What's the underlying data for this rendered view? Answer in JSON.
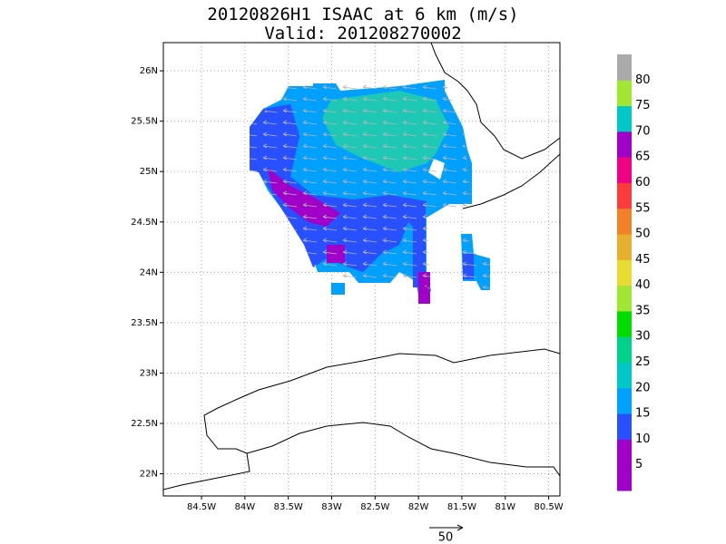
{
  "chart_data": {
    "type": "map",
    "title": "20120826H1 ISAAC at 6 km (m/s)",
    "subtitle": "Valid: 201208270002",
    "xlim": [
      -84.94,
      -80.37
    ],
    "ylim": [
      21.78,
      26.28
    ],
    "xticks": [
      {
        "value": -84.5,
        "label": "84.5W"
      },
      {
        "value": -84,
        "label": "84W"
      },
      {
        "value": -83.5,
        "label": "83.5W"
      },
      {
        "value": -83,
        "label": "83W"
      },
      {
        "value": -82.5,
        "label": "82.5W"
      },
      {
        "value": -82,
        "label": "82W"
      },
      {
        "value": -81.5,
        "label": "81.5W"
      },
      {
        "value": -81,
        "label": "81W"
      },
      {
        "value": -80.5,
        "label": "80.5W"
      }
    ],
    "yticks": [
      {
        "value": 22,
        "label": "22N"
      },
      {
        "value": 22.5,
        "label": "22.5N"
      },
      {
        "value": 23,
        "label": "23N"
      },
      {
        "value": 23.5,
        "label": "23.5N"
      },
      {
        "value": 24,
        "label": "24N"
      },
      {
        "value": 24.5,
        "label": "24.5N"
      },
      {
        "value": 25,
        "label": "25N"
      },
      {
        "value": 25.5,
        "label": "25.5N"
      },
      {
        "value": 26,
        "label": "26N"
      }
    ],
    "grid": true,
    "colorbar": {
      "levels": [
        5,
        10,
        15,
        20,
        25,
        30,
        35,
        40,
        45,
        50,
        55,
        60,
        65,
        70,
        75,
        80
      ],
      "colors": [
        "#a000c8",
        "#a000c8",
        "#2850ff",
        "#00a0ff",
        "#00c8c8",
        "#00d28c",
        "#00dc00",
        "#a0e632",
        "#e6dc32",
        "#e6af2d",
        "#f08228",
        "#fa3c3c",
        "#f00082",
        "#a000c8",
        "#00c8c8",
        "#a0e632",
        "#aaaaaa"
      ]
    },
    "reference_vector": 50
  }
}
